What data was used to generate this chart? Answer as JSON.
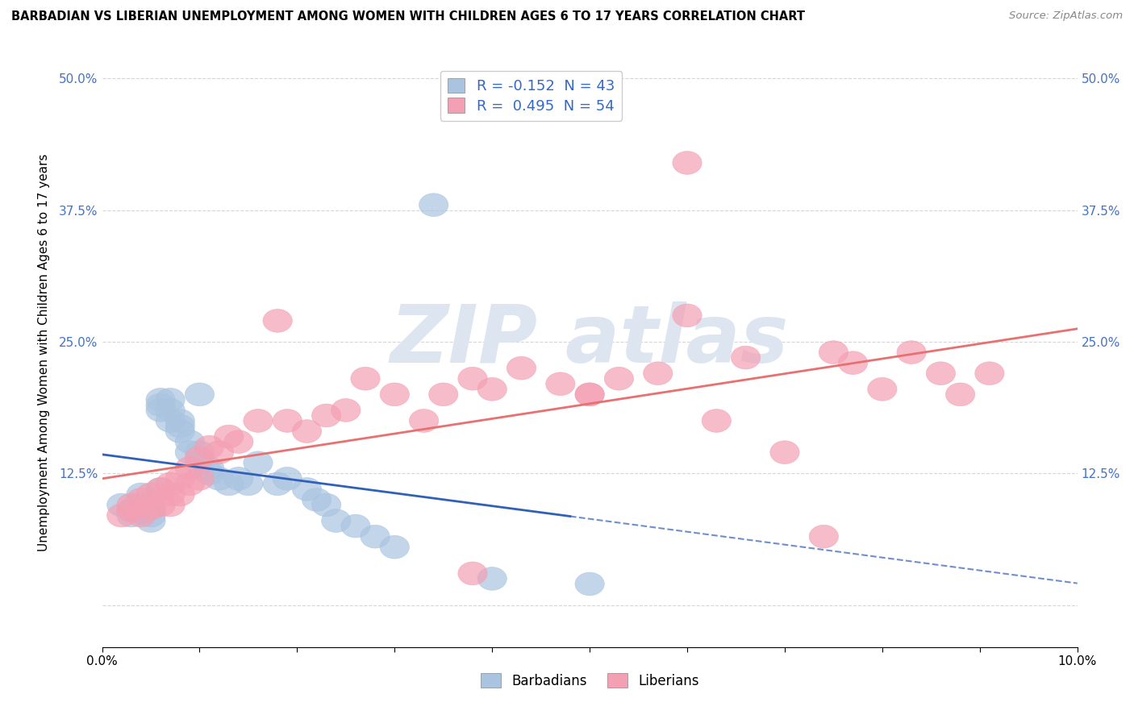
{
  "title": "BARBADIAN VS LIBERIAN UNEMPLOYMENT AMONG WOMEN WITH CHILDREN AGES 6 TO 17 YEARS CORRELATION CHART",
  "source": "Source: ZipAtlas.com",
  "ylabel": "Unemployment Among Women with Children Ages 6 to 17 years",
  "xlabel_barbadians": "Barbadians",
  "xlabel_liberians": "Liberians",
  "xlim": [
    0.0,
    0.1
  ],
  "ylim": [
    -0.04,
    0.52
  ],
  "r_barbadian": -0.152,
  "n_barbadian": 43,
  "r_liberian": 0.495,
  "n_liberian": 54,
  "barbadian_color": "#aac4e0",
  "liberian_color": "#f4a0b4",
  "barbadian_line_color": "#3060b8",
  "liberian_line_color": "#e87070",
  "legend_text_color": "#3468c8",
  "right_tick_color": "#4472c4",
  "background_color": "#ffffff",
  "grid_color": "#cccccc",
  "watermark_color": "#dde6f0",
  "barbadian_x": [
    0.002,
    0.003,
    0.003,
    0.004,
    0.004,
    0.004,
    0.005,
    0.005,
    0.005,
    0.006,
    0.006,
    0.006,
    0.006,
    0.007,
    0.007,
    0.007,
    0.008,
    0.008,
    0.008,
    0.009,
    0.009,
    0.01,
    0.01,
    0.01,
    0.011,
    0.011,
    0.012,
    0.013,
    0.014,
    0.015,
    0.016,
    0.018,
    0.019,
    0.021,
    0.022,
    0.023,
    0.024,
    0.026,
    0.028,
    0.03,
    0.034,
    0.04,
    0.05
  ],
  "barbadian_y": [
    0.095,
    0.09,
    0.085,
    0.105,
    0.095,
    0.088,
    0.092,
    0.085,
    0.08,
    0.195,
    0.19,
    0.185,
    0.11,
    0.195,
    0.185,
    0.175,
    0.175,
    0.17,
    0.165,
    0.155,
    0.145,
    0.145,
    0.135,
    0.2,
    0.125,
    0.13,
    0.12,
    0.115,
    0.12,
    0.115,
    0.135,
    0.115,
    0.12,
    0.11,
    0.1,
    0.095,
    0.08,
    0.075,
    0.065,
    0.055,
    0.38,
    0.025,
    0.02
  ],
  "liberian_x": [
    0.002,
    0.003,
    0.003,
    0.004,
    0.004,
    0.005,
    0.005,
    0.006,
    0.006,
    0.007,
    0.007,
    0.007,
    0.008,
    0.008,
    0.009,
    0.009,
    0.01,
    0.01,
    0.011,
    0.012,
    0.013,
    0.014,
    0.016,
    0.018,
    0.019,
    0.021,
    0.023,
    0.025,
    0.027,
    0.03,
    0.033,
    0.035,
    0.038,
    0.04,
    0.043,
    0.047,
    0.05,
    0.053,
    0.057,
    0.06,
    0.063,
    0.066,
    0.07,
    0.074,
    0.077,
    0.08,
    0.083,
    0.086,
    0.088,
    0.091,
    0.05,
    0.038,
    0.06,
    0.075
  ],
  "liberian_y": [
    0.085,
    0.09,
    0.095,
    0.1,
    0.085,
    0.105,
    0.092,
    0.11,
    0.095,
    0.105,
    0.115,
    0.095,
    0.12,
    0.105,
    0.13,
    0.115,
    0.14,
    0.12,
    0.15,
    0.145,
    0.16,
    0.155,
    0.175,
    0.27,
    0.175,
    0.165,
    0.18,
    0.185,
    0.215,
    0.2,
    0.175,
    0.2,
    0.215,
    0.205,
    0.225,
    0.21,
    0.2,
    0.215,
    0.22,
    0.42,
    0.175,
    0.235,
    0.145,
    0.065,
    0.23,
    0.205,
    0.24,
    0.22,
    0.2,
    0.22,
    0.2,
    0.03,
    0.275,
    0.24
  ],
  "yticks": [
    0.0,
    0.125,
    0.25,
    0.375,
    0.5
  ],
  "ytick_labels": [
    "",
    "12.5%",
    "25.0%",
    "37.5%",
    "50.0%"
  ],
  "xtick_positions": [
    0.0,
    0.01,
    0.02,
    0.03,
    0.04,
    0.05,
    0.06,
    0.07,
    0.08,
    0.09,
    0.1
  ],
  "xtick_labels": [
    "0.0%",
    "",
    "",
    "",
    "",
    "",
    "",
    "",
    "",
    "",
    "10.0%"
  ]
}
